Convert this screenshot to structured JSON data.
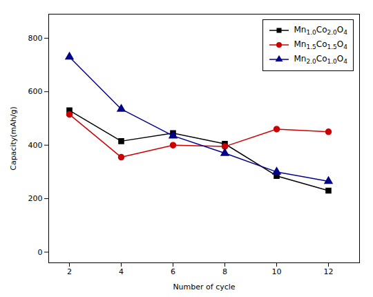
{
  "chart_data": {
    "type": "line",
    "xlabel": "Number of cycle",
    "ylabel": "Capacity(mAh/g)",
    "x": [
      2,
      4,
      6,
      8,
      10,
      12
    ],
    "series": [
      {
        "name": "Mn1.0Co2.0O4",
        "color": "#000000",
        "marker": "square",
        "line_style": "solid",
        "values": [
          530,
          415,
          445,
          405,
          285,
          230
        ]
      },
      {
        "name": "Mn1.5Co1.5O4",
        "color": "#cc0000",
        "marker": "circle",
        "line_style": "solid",
        "values": [
          515,
          355,
          400,
          395,
          460,
          450
        ]
      },
      {
        "name": "Mn2.0Co1.0O4",
        "color": "#00008B",
        "marker": "triangle",
        "line_style": "solid",
        "values": [
          730,
          535,
          435,
          370,
          300,
          265
        ]
      }
    ],
    "xlim": [
      1.2,
      13.2
    ],
    "ylim": [
      -40,
      890
    ],
    "xticks": [
      2,
      4,
      6,
      8,
      10,
      12
    ],
    "yticks": [
      0,
      200,
      400,
      600,
      800
    ],
    "grid": false,
    "legend": "upper right"
  }
}
